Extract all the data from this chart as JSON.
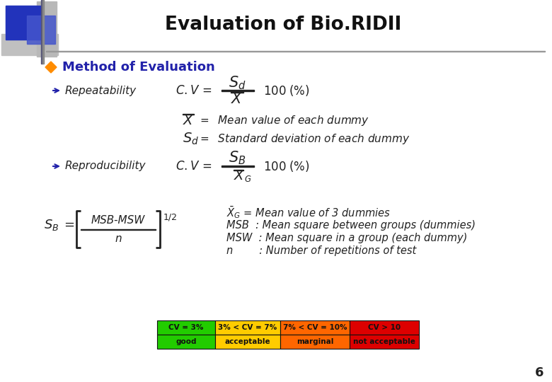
{
  "title": "Evaluation of Bio.RIDII",
  "bg_color": "#ffffff",
  "title_color": "#111111",
  "section1": "Method of Evaluation",
  "item1": "Repeatability",
  "item2": "Reproducibility",
  "cv_label1": "CV = 3%",
  "cv_label2": "3% < CV = 7%",
  "cv_label3": "7% < CV = 10%",
  "cv_label4": "CV > 10",
  "cv_val1": "good",
  "cv_val2": "acceptable",
  "cv_val3": "marginal",
  "cv_val4": "not acceptable",
  "cv_colors": [
    "#22cc00",
    "#ffcc00",
    "#ff6600",
    "#dd0000"
  ],
  "page_num": "6",
  "line_color": "#999999",
  "text_color": "#222222",
  "blue_color": "#2222aa",
  "bullet_orange": "#FF8C00"
}
